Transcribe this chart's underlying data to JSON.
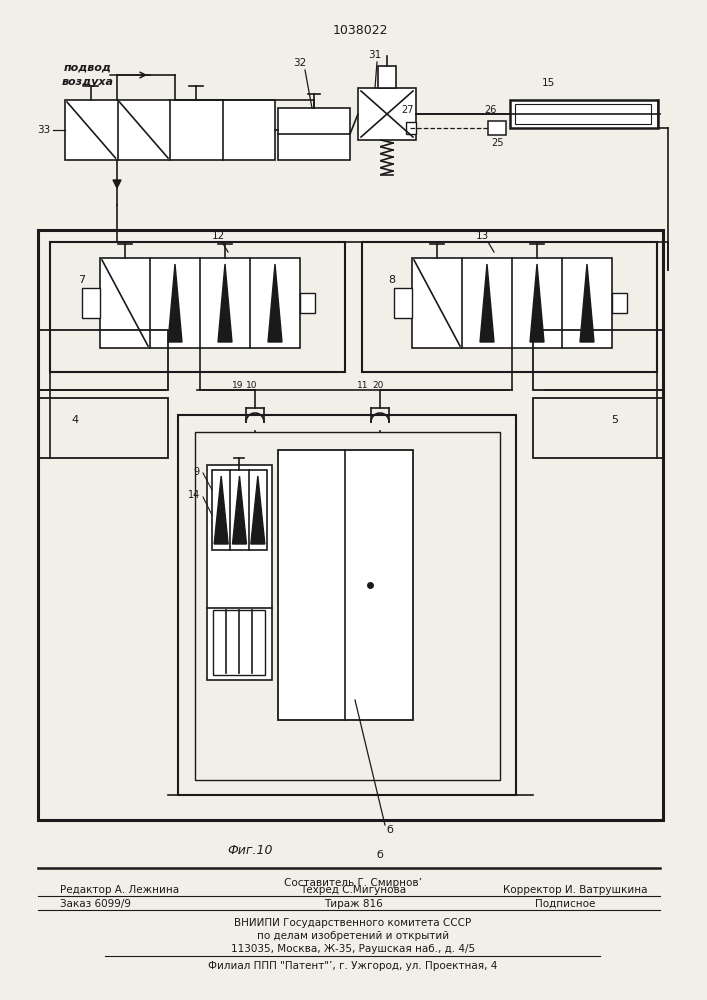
{
  "patent_number": "1038022",
  "fig_label": "Фиг.10",
  "fig_label2": "б",
  "bg_color": "#f2efe9",
  "line_color": "#1a1a1a",
  "label_33": "33",
  "label_32": "32",
  "label_31": "31",
  "label_7": "7",
  "label_8": "8",
  "label_12": "12",
  "label_13": "13",
  "label_4": "4",
  "label_5": "5",
  "label_9": "9",
  "label_14": "14",
  "label_19": "19",
  "label_10": "10",
  "label_11": "11",
  "label_20": "20",
  "label_15": "15",
  "label_25": "25",
  "label_26": "26",
  "label_27": "27",
  "label_6": "б",
  "подвод1": "подвод",
  "подвод2": "воздуха",
  "составитель": "Составитель Г. Смирнов’",
  "редактор": "Редактор А. Лежнина",
  "техред": "Техред С.Мигунова",
  "корректор": "Корректор И. Ватрушкина",
  "заказ": "Заказ 6099/9",
  "тираж": "Тираж 816",
  "подписное": "Подписное",
  "вниипи1": "ВНИИПИ Государственного комитета СССР",
  "вниипи2": "по делам изобретений и открытий",
  "адрес": "113035, Москва, Ж-35, Раушская наб., д. 4/5",
  "филиал": "Филиал ППП \"Патент\"’, г. Ужгород, ул. Проектная, 4"
}
